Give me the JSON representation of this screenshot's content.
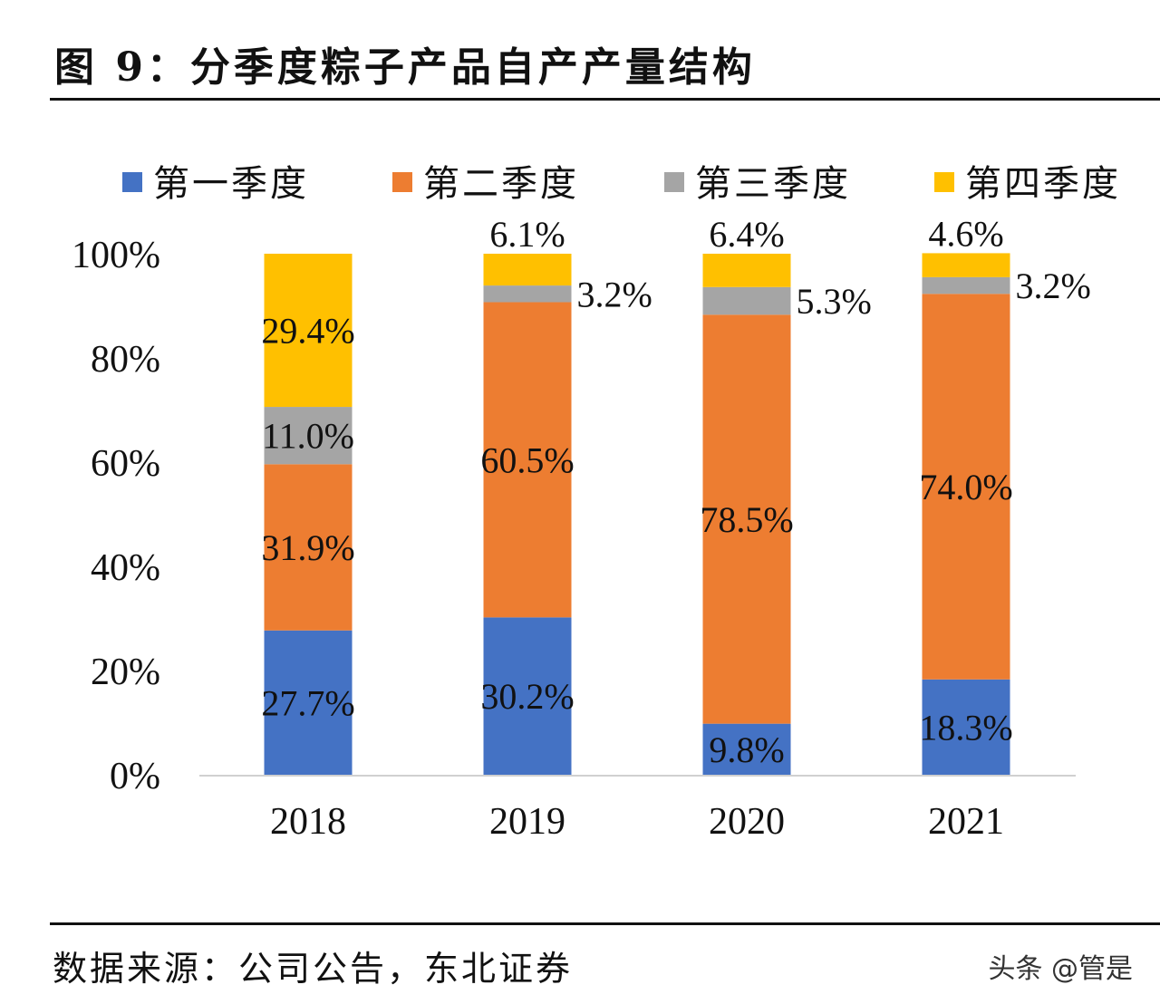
{
  "header": {
    "title": "图 9：分季度粽子产品自产产量结构"
  },
  "footer": {
    "source": "数据来源：公司公告，东北证券",
    "watermark": "头条 @管是"
  },
  "chart_data": {
    "type": "bar",
    "stacked": true,
    "title": "图 9：分季度粽子产品自产产量结构",
    "categories": [
      "2018",
      "2019",
      "2020",
      "2021"
    ],
    "series": [
      {
        "name": "第一季度",
        "color": "#4472C4",
        "values": [
          27.7,
          30.2,
          9.8,
          18.3
        ]
      },
      {
        "name": "第二季度",
        "color": "#ED7D31",
        "values": [
          31.9,
          60.5,
          78.5,
          74.0
        ]
      },
      {
        "name": "第三季度",
        "color": "#A5A5A5",
        "values": [
          11.0,
          3.2,
          5.3,
          3.2
        ]
      },
      {
        "name": "第四季度",
        "color": "#FFC000",
        "values": [
          29.4,
          6.1,
          6.4,
          4.6
        ]
      }
    ],
    "ylim": [
      0,
      100
    ],
    "yticks": [
      "0%",
      "20%",
      "40%",
      "60%",
      "80%",
      "100%"
    ],
    "legend": "top",
    "grid": false,
    "xlabel": "",
    "ylabel": ""
  }
}
